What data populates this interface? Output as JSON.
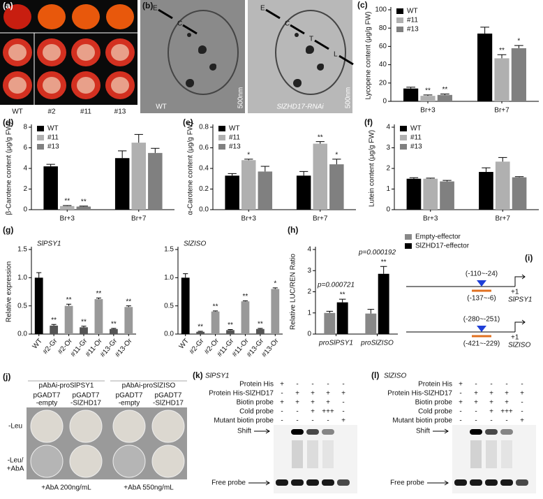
{
  "figure": {
    "a": {
      "label": "(a)",
      "lanes": [
        "WT",
        "#2",
        "#11",
        "#13"
      ]
    },
    "b": {
      "label": "(b)",
      "left": {
        "caption": "WT",
        "arrows": [
          "E",
          "C"
        ],
        "scale": "500nm"
      },
      "right": {
        "caption": "SlZHD17-RNAi",
        "arrows": [
          "E",
          "C",
          "T",
          "L"
        ],
        "scale": "500nm"
      }
    },
    "i": {
      "label": "(i)",
      "genes": [
        {
          "site1": "(-110~-24)",
          "site2": "(-137~-6)",
          "tss": "+1",
          "name": "SlPSY1"
        },
        {
          "site1": "(-280~-251)",
          "site2": "(-421~-229)",
          "tss": "+1",
          "name": "SlZISO"
        }
      ]
    },
    "j": {
      "label": "(j)",
      "rows": [
        [
          "-Leu"
        ],
        [
          "-Leu/",
          "+AbA"
        ]
      ],
      "groups": [
        {
          "title": "pAbAi-proSlPSY1",
          "columns": [
            [
              "pGADT7",
              "-empty"
            ],
            [
              "pGADT7",
              "-SlZHD17"
            ]
          ],
          "footer": "+AbA 200ng/mL"
        },
        {
          "title": "pAbAi-proSlZISO",
          "columns": [
            [
              "pGADT7",
              "-empty"
            ],
            [
              "pGADT7",
              "-SlZHD17"
            ]
          ],
          "footer": "+AbA 550ng/mL"
        }
      ]
    },
    "k": {
      "label": "(k)",
      "title": "SlPSY1",
      "rows": [
        {
          "name": "Protein His",
          "lanes": [
            "+",
            "-",
            "-",
            "-",
            "-"
          ]
        },
        {
          "name": "Protein His-SlZHD17",
          "lanes": [
            "-",
            "+",
            "+",
            "+",
            "+"
          ]
        },
        {
          "name": "Biotin probe",
          "lanes": [
            "+",
            "+",
            "+",
            "+",
            "-"
          ]
        },
        {
          "name": "Cold probe",
          "lanes": [
            "-",
            "-",
            "+",
            "+++",
            "-"
          ]
        },
        {
          "name": "Mutant biotin probe",
          "lanes": [
            "-",
            "-",
            "-",
            "-",
            "+"
          ]
        }
      ],
      "shift": "Shift",
      "free": "Free probe"
    },
    "l": {
      "label": "(l)",
      "title": "SlZISO",
      "rows": [
        {
          "name": "Protein His",
          "lanes": [
            "+",
            "-",
            "-",
            "-",
            "-"
          ]
        },
        {
          "name": "Protein His-SlZHD17",
          "lanes": [
            "-",
            "+",
            "+",
            "+",
            "+"
          ]
        },
        {
          "name": "Biotin probe",
          "lanes": [
            "+",
            "+",
            "+",
            "+",
            "-"
          ]
        },
        {
          "name": "Cold probe",
          "lanes": [
            "-",
            "-",
            "+",
            "+++",
            "-"
          ]
        },
        {
          "name": "Mutant biotin probe",
          "lanes": [
            "-",
            "-",
            "-",
            "-",
            "+"
          ]
        }
      ],
      "shift": "Shift",
      "free": "Free probe"
    }
  },
  "chart_data": [
    {
      "type": "bar",
      "panel": "(c)",
      "ylabel": "Lycopene content (μg/g FW)",
      "categories": [
        "Br+3",
        "Br+7"
      ],
      "ylim": [
        0,
        100
      ],
      "yticks": [
        0,
        20,
        40,
        60,
        80,
        100
      ],
      "legend": "upper left",
      "series": [
        {
          "name": "WT",
          "color": "#000000",
          "values": [
            14,
            74
          ],
          "errors": [
            1.5,
            7
          ],
          "significance": [
            null,
            null
          ]
        },
        {
          "name": "#11",
          "color": "#b0b0b0",
          "values": [
            6,
            47
          ],
          "errors": [
            1,
            4
          ],
          "significance": [
            "**",
            "**"
          ]
        },
        {
          "name": "#13",
          "color": "#808080",
          "values": [
            7,
            58
          ],
          "errors": [
            1,
            3
          ],
          "significance": [
            "**",
            "*"
          ]
        }
      ]
    },
    {
      "type": "bar",
      "panel": "(d)",
      "ylabel": "β-Carotene content (μg/g FW)",
      "categories": [
        "Br+3",
        "Br+7"
      ],
      "ylim": [
        0,
        8
      ],
      "yticks": [
        0,
        2,
        4,
        6,
        8
      ],
      "legend": "upper left",
      "series": [
        {
          "name": "WT",
          "color": "#000000",
          "values": [
            4.2,
            5.0
          ],
          "errors": [
            0.2,
            0.7
          ],
          "significance": [
            null,
            null
          ]
        },
        {
          "name": "#11",
          "color": "#b0b0b0",
          "values": [
            0.35,
            6.5
          ],
          "errors": [
            0.05,
            0.8
          ],
          "significance": [
            "**",
            null
          ]
        },
        {
          "name": "#13",
          "color": "#808080",
          "values": [
            0.3,
            5.5
          ],
          "errors": [
            0.05,
            0.45
          ],
          "significance": [
            "**",
            null
          ]
        }
      ]
    },
    {
      "type": "bar",
      "panel": "(e)",
      "ylabel": "α-Carotene content (μg/g FW)",
      "categories": [
        "Br+3",
        "Br+7"
      ],
      "ylim": [
        0,
        0.8
      ],
      "yticks": [
        {
          "value": 0,
          "label": "0.0"
        },
        0.2,
        0.4,
        0.6,
        0.8
      ],
      "legend": "upper left",
      "series": [
        {
          "name": "WT",
          "color": "#000000",
          "values": [
            0.33,
            0.33
          ],
          "errors": [
            0.02,
            0.04
          ],
          "significance": [
            null,
            null
          ]
        },
        {
          "name": "#11",
          "color": "#b0b0b0",
          "values": [
            0.48,
            0.64
          ],
          "errors": [
            0.01,
            0.02
          ],
          "significance": [
            "*",
            "**"
          ]
        },
        {
          "name": "#13",
          "color": "#808080",
          "values": [
            0.37,
            0.44
          ],
          "errors": [
            0.05,
            0.05
          ],
          "significance": [
            null,
            "*"
          ]
        }
      ]
    },
    {
      "type": "bar",
      "panel": "(f)",
      "ylabel": "Lutein content (μg/g FW)",
      "categories": [
        "Br+3",
        "Br+7"
      ],
      "ylim": [
        0,
        4
      ],
      "yticks": [
        0,
        1,
        2,
        3,
        4
      ],
      "legend": "upper left",
      "series": [
        {
          "name": "WT",
          "color": "#000000",
          "values": [
            1.5,
            1.83
          ],
          "errors": [
            0.05,
            0.2
          ],
          "significance": [
            null,
            null
          ]
        },
        {
          "name": "#11",
          "color": "#b0b0b0",
          "values": [
            1.5,
            2.33
          ],
          "errors": [
            0.03,
            0.2
          ],
          "significance": [
            null,
            null
          ]
        },
        {
          "name": "#13",
          "color": "#808080",
          "values": [
            1.37,
            1.57
          ],
          "errors": [
            0.05,
            0.03
          ],
          "significance": [
            null,
            null
          ]
        }
      ]
    },
    {
      "type": "bar",
      "panel": "(g)",
      "title": "SlPSY1",
      "ylabel": "Relative expression",
      "categories": [
        "WT",
        "#2-Gr",
        "#2-Or",
        "#11-Gr",
        "#11-Or",
        "#13-Gr",
        "#13-Or"
      ],
      "values": [
        1.0,
        0.15,
        0.5,
        0.12,
        0.62,
        0.09,
        0.48
      ],
      "errors": [
        0.09,
        0.02,
        0.03,
        0.02,
        0.02,
        0.01,
        0.02
      ],
      "significance": [
        null,
        "**",
        "**",
        "**",
        "**",
        "**",
        "**"
      ],
      "colors": [
        "#000000",
        "#555555",
        "#999999",
        "#555555",
        "#999999",
        "#555555",
        "#999999"
      ],
      "ylim": [
        0,
        1.5
      ],
      "yticks": [
        {
          "value": 0,
          "label": "0.0"
        },
        0.5,
        {
          "value": 1,
          "label": "1.0"
        },
        1.5
      ]
    },
    {
      "type": "bar",
      "title": "SlZISO",
      "categories": [
        "WT",
        "#2-Gr",
        "#2-Or",
        "#11-Gr",
        "#11-Or",
        "#13-Gr",
        "#13-Or"
      ],
      "values": [
        1.0,
        0.04,
        0.4,
        0.07,
        0.58,
        0.09,
        0.8
      ],
      "errors": [
        0.07,
        0.01,
        0.01,
        0.01,
        0.01,
        0.01,
        0.02
      ],
      "significance": [
        null,
        "**",
        "**",
        "**",
        "**",
        "**",
        "*"
      ],
      "colors": [
        "#000000",
        "#555555",
        "#999999",
        "#555555",
        "#999999",
        "#555555",
        "#999999"
      ],
      "ylim": [
        0,
        1.5
      ],
      "yticks": [
        {
          "value": 0,
          "label": "0.0"
        },
        0.5,
        {
          "value": 1,
          "label": "1.0"
        },
        1.5
      ]
    },
    {
      "type": "bar",
      "panel": "(h)",
      "ylabel": "Relative LUC/REN Ratio",
      "categories": [
        "proSlPSY1",
        "proSlZISO"
      ],
      "p_values": [
        "p=0.000721",
        "p=0.000192"
      ],
      "ylim": [
        0,
        4
      ],
      "yticks": [
        0,
        1,
        2,
        3,
        4
      ],
      "legend": "outside right",
      "series": [
        {
          "name": "Empty-effector",
          "color": "#888888",
          "values": [
            1.0,
            0.97
          ],
          "errors": [
            0.08,
            0.2
          ],
          "significance": [
            null,
            null
          ]
        },
        {
          "name": "SlZHD17-effector",
          "color": "#000000",
          "values": [
            1.5,
            2.85
          ],
          "errors": [
            0.15,
            0.35
          ],
          "significance": [
            "**",
            "**"
          ]
        }
      ]
    }
  ]
}
